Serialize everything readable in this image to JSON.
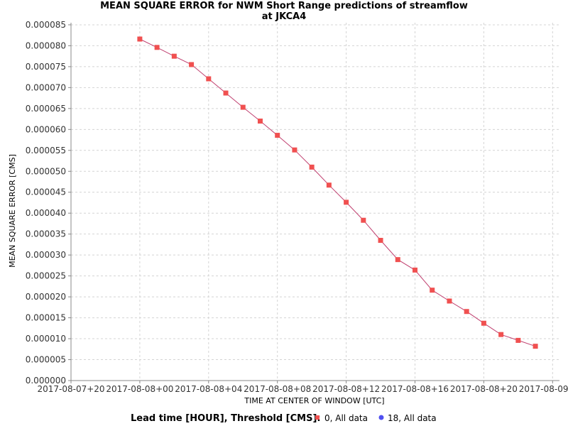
{
  "chart_data": {
    "type": "line",
    "title_line1": "MEAN SQUARE ERROR for NWM Short Range predictions of streamflow",
    "title_line2": "at JKCA4",
    "xlabel": "TIME AT CENTER OF WINDOW [UTC]",
    "ylabel": "MEAN SQUARE ERROR [CMS]",
    "x_tick_labels": [
      "2017-08-07+20",
      "2017-08-08+00",
      "2017-08-08+04",
      "2017-08-08+08",
      "2017-08-08+12",
      "2017-08-08+16",
      "2017-08-08+20",
      "2017-08-09+00"
    ],
    "x_tick_hours": [
      -4,
      0,
      4,
      8,
      12,
      16,
      20,
      24
    ],
    "y_tick_labels": [
      "0.000000",
      "0.000005",
      "0.000010",
      "0.000015",
      "0.000020",
      "0.000025",
      "0.000030",
      "0.000035",
      "0.000040",
      "0.000045",
      "0.000050",
      "0.000055",
      "0.000060",
      "0.000065",
      "0.000070",
      "0.000075",
      "0.000080",
      "0.000085"
    ],
    "xlim_hours": [
      -4,
      24.4
    ],
    "ylim": [
      0,
      8.55e-05
    ],
    "grid": true,
    "legend": {
      "title": "Lead time [HOUR], Threshold [CMS]:",
      "position": "bottom",
      "entries": [
        {
          "label": "0, All data",
          "color": "#f05050",
          "marker": "square"
        },
        {
          "label": "18, All data",
          "color": "#5050f0",
          "marker": "circle"
        }
      ]
    },
    "series": [
      {
        "name": "0, All data",
        "color": "#f05050",
        "line_color": "#c04070",
        "x_hours": [
          0,
          1,
          2,
          3,
          4,
          5,
          6,
          7,
          8,
          9,
          10,
          11,
          12,
          13,
          14,
          15,
          16,
          17,
          18,
          19,
          20,
          21,
          22,
          23
        ],
        "values": [
          8.16e-05,
          7.96e-05,
          7.75e-05,
          7.55e-05,
          7.21e-05,
          6.87e-05,
          6.53e-05,
          6.2e-05,
          5.86e-05,
          5.51e-05,
          5.1e-05,
          4.67e-05,
          4.26e-05,
          3.83e-05,
          3.35e-05,
          2.89e-05,
          2.64e-05,
          2.16e-05,
          1.9e-05,
          1.65e-05,
          1.37e-05,
          1.1e-05,
          9.6e-06,
          8.2e-06
        ]
      }
    ]
  }
}
